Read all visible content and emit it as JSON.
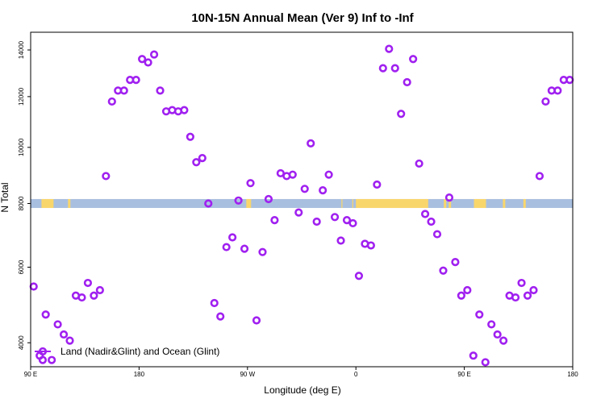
{
  "chart_data": {
    "type": "scatter",
    "title": "10N-15N Annual Mean (Ver 9)   Inf to -Inf",
    "xlabel": "Longitude (deg E)",
    "ylabel": "N Total",
    "x_ticks": [
      {
        "value": 0,
        "label": "90 E"
      },
      {
        "value": 90,
        "label": "180"
      },
      {
        "value": 180,
        "label": "90 W"
      },
      {
        "value": 270,
        "label": "0"
      },
      {
        "value": 360,
        "label": "90 E"
      },
      {
        "value": 450,
        "label": "180"
      }
    ],
    "y_ticks": [
      4000,
      6000,
      8000,
      10000,
      12000,
      14000
    ],
    "xlim": [
      0,
      450
    ],
    "ylim": [
      3450,
      14800
    ],
    "y_scale": "sqrt",
    "legend": {
      "label": "Land (Nadir&Glint) and Ocean (Glint)",
      "position": "bottom-left"
    },
    "series": [
      {
        "name": "Land (Nadir&Glint) and Ocean (Glint)",
        "color": "#a020f0",
        "x": [
          2.5,
          7.5,
          10,
          12.5,
          17.5,
          22.5,
          27.5,
          32.5,
          37.5,
          42.5,
          47.5,
          52.5,
          57.5,
          62.5,
          67.5,
          72.5,
          77.5,
          82.5,
          87.5,
          92.5,
          97.5,
          102.5,
          107.5,
          112.5,
          117.5,
          122.5,
          127.5,
          132.5,
          137.5,
          142.5,
          147.5,
          152.5,
          157.5,
          162.5,
          167.5,
          172.5,
          177.5,
          182.5,
          187.5,
          192.5,
          197.5,
          202.5,
          207.5,
          212.5,
          217.5,
          222.5,
          227.5,
          232.5,
          237.5,
          242.5,
          247.5,
          252.5,
          257.5,
          262.5,
          267.5,
          272.5,
          277.5,
          282.5,
          287.5,
          292.5,
          297.5,
          302.5,
          307.5,
          312.5,
          317.5,
          322.5,
          327.5,
          332.5,
          337.5,
          342.5,
          347.5,
          352.5,
          357.5,
          362.5,
          367.5,
          372.5,
          377.5,
          382.5,
          387.5,
          392.5,
          397.5,
          402.5,
          407.5,
          412.5,
          417.5,
          422.5,
          427.5,
          432.5,
          437.5,
          442.5,
          447.5
        ],
        "y": [
          5450,
          3700,
          3600,
          4700,
          3600,
          4450,
          4200,
          4050,
          5200,
          5150,
          5550,
          5200,
          5350,
          8950,
          11800,
          12250,
          12250,
          12700,
          12700,
          13600,
          13450,
          13800,
          12250,
          11400,
          11450,
          11400,
          11450,
          10400,
          9450,
          9600,
          8000,
          5000,
          4650,
          6600,
          6900,
          8100,
          6550,
          8700,
          4550,
          6450,
          8150,
          7450,
          9050,
          8950,
          9000,
          7700,
          8500,
          10150,
          7400,
          8450,
          9000,
          7550,
          6800,
          7450,
          7350,
          5750,
          6700,
          6650,
          8650,
          13200,
          14050,
          13200,
          11300,
          12600,
          13600,
          9400,
          7650,
          7400,
          7000,
          5900,
          8200,
          6150,
          5200,
          5350,
          3700,
          4700,
          3550,
          4450,
          4200,
          4050,
          5200,
          5150,
          5550,
          5200,
          5350,
          8950,
          11800,
          12250,
          12250,
          12700,
          12700
        ]
      }
    ],
    "band": {
      "y_range": [
        7850,
        8150
      ],
      "base_color": "#a9bfe0",
      "land_color": "#f9d66c",
      "land_x_ranges": [
        [
          9,
          19
        ],
        [
          31,
          33
        ],
        [
          179,
          183
        ],
        [
          258,
          258
        ],
        [
          267,
          267
        ],
        [
          270,
          330
        ],
        [
          343,
          345
        ],
        [
          347,
          349
        ],
        [
          368,
          378
        ],
        [
          392,
          394
        ],
        [
          409,
          411
        ]
      ]
    }
  }
}
